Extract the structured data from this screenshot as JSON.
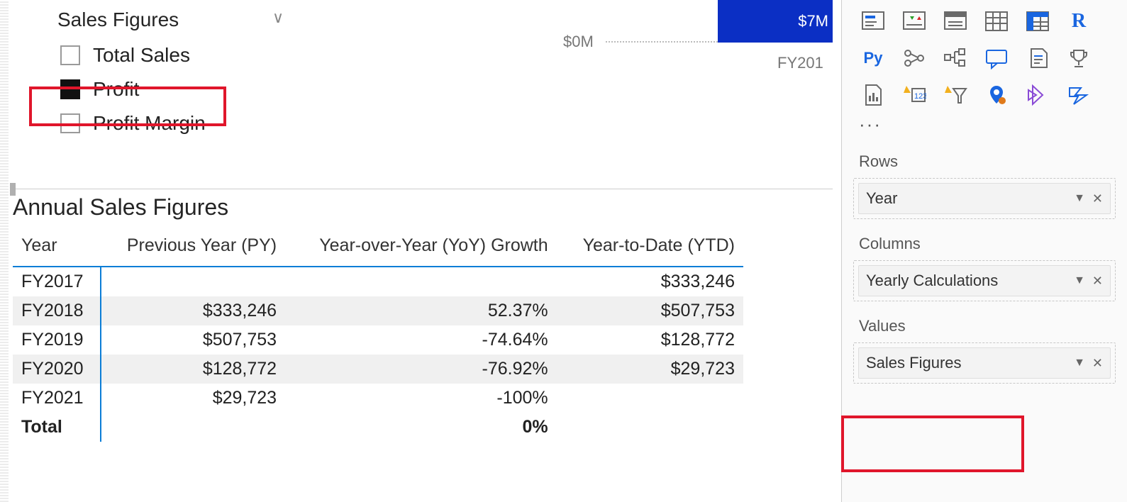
{
  "slicer": {
    "title": "Sales Figures",
    "items": [
      {
        "label": "Total Sales",
        "checked": false
      },
      {
        "label": "Profit",
        "checked": true
      },
      {
        "label": "Profit Margin",
        "checked": false
      }
    ]
  },
  "mini_chart": {
    "bar_value": "$7M",
    "axis_label": "$0M",
    "x_label": "FY201",
    "bar_color": "#0b2fc4"
  },
  "table": {
    "title": "Annual Sales Figures",
    "columns": [
      "Year",
      "Previous Year (PY)",
      "Year-over-Year (YoY) Growth",
      "Year-to-Date (YTD)"
    ],
    "rows": [
      {
        "year": "FY2017",
        "py": "",
        "yoy": "",
        "ytd": "$333,246",
        "alt": false
      },
      {
        "year": "FY2018",
        "py": "$333,246",
        "yoy": "52.37%",
        "ytd": "$507,753",
        "alt": true
      },
      {
        "year": "FY2019",
        "py": "$507,753",
        "yoy": "-74.64%",
        "ytd": "$128,772",
        "alt": false
      },
      {
        "year": "FY2020",
        "py": "$128,772",
        "yoy": "-76.92%",
        "ytd": "$29,723",
        "alt": true
      },
      {
        "year": "FY2021",
        "py": "$29,723",
        "yoy": "-100%",
        "ytd": "",
        "alt": false
      }
    ],
    "total": {
      "year": "Total",
      "py": "",
      "yoy": "0%",
      "ytd": ""
    },
    "header_rule_color": "#0b7dd6"
  },
  "panel": {
    "rows_label": "Rows",
    "rows_chip": "Year",
    "columns_label": "Columns",
    "columns_chip": "Yearly Calculations",
    "values_label": "Values",
    "values_chip": "Sales Figures",
    "more": "···",
    "r_label": "R",
    "py_label": "Py"
  },
  "colors": {
    "highlight": "#e0162b",
    "axis_blue": "#0b7dd6",
    "panel_border": "#c7c7c7",
    "icon_gray": "#6a6a6a",
    "icon_blue": "#1a66e0",
    "icon_orange": "#e07a1a",
    "icon_purple": "#8a4bd6"
  }
}
